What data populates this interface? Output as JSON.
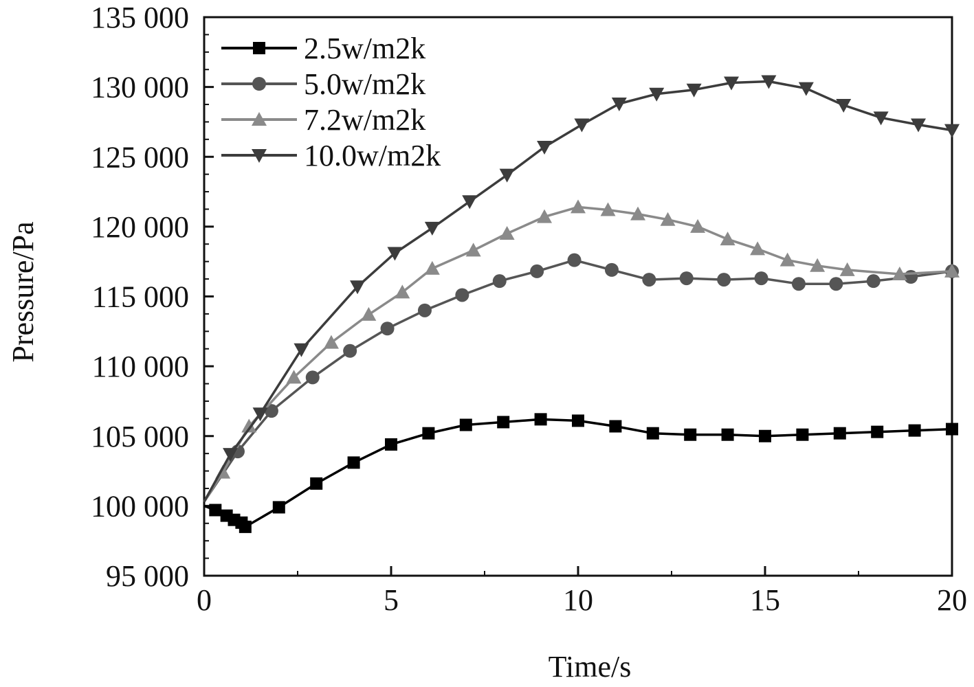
{
  "chart_data": {
    "type": "line",
    "title": "",
    "xlabel": "Time/s",
    "ylabel": "Pressure/Pa",
    "xlim": [
      0,
      20
    ],
    "ylim": [
      95000,
      135000
    ],
    "xticks": [
      0,
      5,
      10,
      15,
      20
    ],
    "xtick_labels": [
      "0",
      "5",
      "10",
      "15",
      "20"
    ],
    "yticks": [
      95000,
      100000,
      105000,
      110000,
      115000,
      120000,
      125000,
      130000,
      135000
    ],
    "ytick_labels": [
      "95 000",
      "100 000",
      "105 000",
      "110 000",
      "115 000",
      "120 000",
      "125 000",
      "130 000",
      "135 000"
    ],
    "grid": false,
    "legend_position": "top-left",
    "series": [
      {
        "name": "2.5w/m2k",
        "marker": "square",
        "color": "#000000",
        "x": [
          0,
          0.3,
          0.6,
          0.8,
          1.0,
          1.1,
          2.0,
          3.0,
          4.0,
          5.0,
          6.0,
          7.0,
          8.0,
          9.0,
          10.0,
          11.0,
          12.0,
          13.0,
          14.0,
          15.0,
          16.0,
          17.0,
          18.0,
          19.0,
          20.0
        ],
        "y": [
          100000,
          99700,
          99300,
          99000,
          98800,
          98500,
          99900,
          101600,
          103100,
          104400,
          105200,
          105800,
          106000,
          106200,
          106100,
          105700,
          105200,
          105100,
          105100,
          105000,
          105100,
          105200,
          105300,
          105400,
          105500
        ]
      },
      {
        "name": "5.0w/m2k",
        "marker": "circle",
        "color": "#555555",
        "x": [
          0,
          0.9,
          1.8,
          2.9,
          3.9,
          4.9,
          5.9,
          6.9,
          7.9,
          8.9,
          9.9,
          10.9,
          11.9,
          12.9,
          13.9,
          14.9,
          15.9,
          16.9,
          17.9,
          18.9,
          20.0
        ],
        "y": [
          100300,
          103900,
          106800,
          109200,
          111100,
          112700,
          114000,
          115100,
          116100,
          116800,
          117600,
          116900,
          116200,
          116300,
          116200,
          116300,
          115900,
          115900,
          116100,
          116400,
          116800
        ]
      },
      {
        "name": "7.2w/m2k",
        "marker": "triangle-up",
        "color": "#8a8a8a",
        "x": [
          0,
          0.5,
          1.2,
          2.4,
          3.4,
          4.4,
          5.3,
          6.1,
          7.2,
          8.1,
          9.1,
          10.0,
          10.8,
          11.6,
          12.4,
          13.2,
          14.0,
          14.8,
          15.6,
          16.4,
          17.2,
          18.6,
          20.0
        ],
        "y": [
          100300,
          102400,
          105700,
          109200,
          111700,
          113700,
          115300,
          117000,
          118300,
          119500,
          120700,
          121400,
          121200,
          120900,
          120500,
          120000,
          119100,
          118400,
          117600,
          117200,
          116900,
          116600,
          116800
        ]
      },
      {
        "name": "10.0w/m2k",
        "marker": "triangle-down",
        "color": "#3c3c3c",
        "x": [
          0,
          0.7,
          1.5,
          2.6,
          4.1,
          5.1,
          6.1,
          7.1,
          8.1,
          9.1,
          10.1,
          11.1,
          12.1,
          13.1,
          14.1,
          15.1,
          16.1,
          17.1,
          18.1,
          19.1,
          20.0
        ],
        "y": [
          100300,
          103700,
          106600,
          111200,
          115700,
          118100,
          119900,
          121800,
          123700,
          125700,
          127300,
          128800,
          129500,
          129800,
          130300,
          130400,
          129900,
          128700,
          127800,
          127300,
          126900
        ]
      }
    ]
  }
}
